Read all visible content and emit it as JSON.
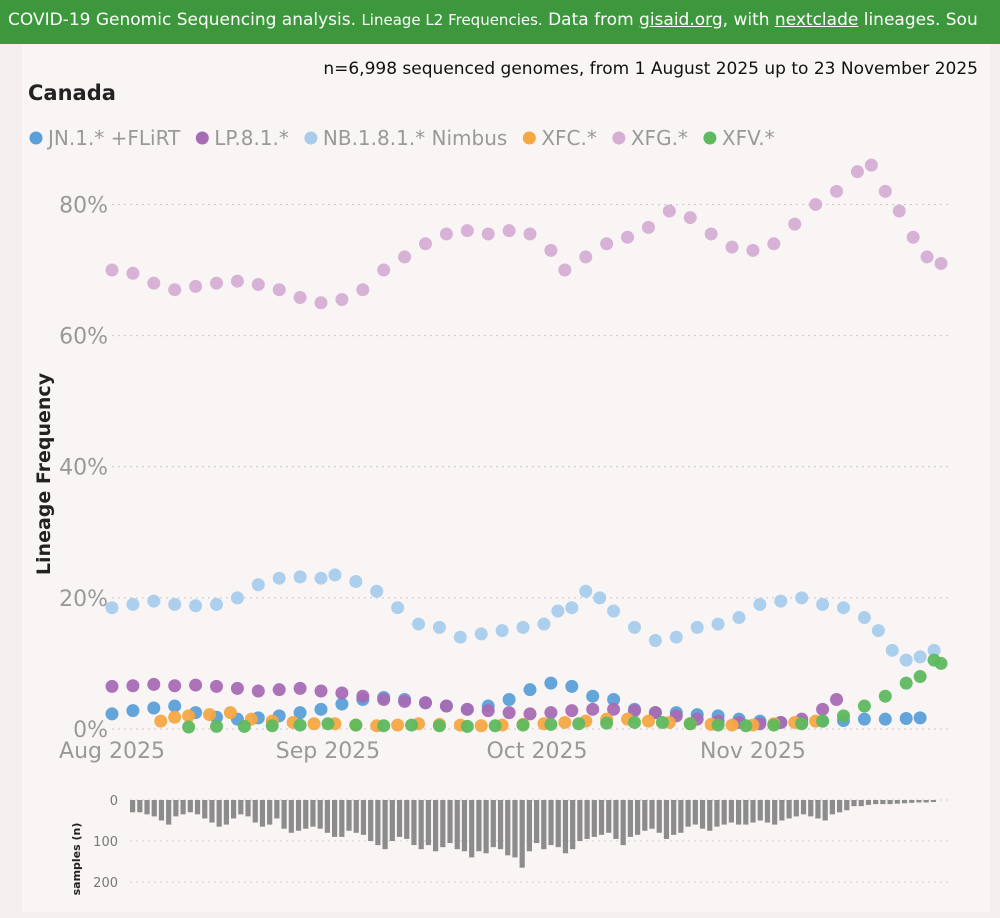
{
  "banner": {
    "main": "COVID-19 Genomic Sequencing analysis.",
    "sub": "Lineage L2 Frequencies.",
    "data_from": "Data from",
    "gisaid": "gisaid.org",
    "with": ", with",
    "nextclade": "nextclade",
    "lineages": "lineages.",
    "source": "Sou"
  },
  "chart_data": {
    "type": "scatter",
    "subtitle": "n=6,998 sequenced genomes, from 1 August 2025 up to 23 November 2025",
    "title": "Canada",
    "ylabel": "Lineage Frequency",
    "ylim": [
      0,
      0.88
    ],
    "yticks": [
      {
        "value": 0,
        "label": "0%"
      },
      {
        "value": 0.2,
        "label": "20%"
      },
      {
        "value": 0.4,
        "label": "40%"
      },
      {
        "value": 0.6,
        "label": "60%"
      },
      {
        "value": 0.8,
        "label": "80%"
      }
    ],
    "xlim": [
      "2025-08-01",
      "2025-11-29"
    ],
    "xticks": [
      {
        "date": "2025-08-01",
        "label": "Aug 2025"
      },
      {
        "date": "2025-09-01",
        "label": "Sep 2025"
      },
      {
        "date": "2025-10-01",
        "label": "Oct 2025"
      },
      {
        "date": "2025-11-01",
        "label": "Nov 2025"
      }
    ],
    "grid": true,
    "legend_position": "top-left",
    "series": [
      {
        "name": "JN.1.* +FLiRT",
        "color": "#5b9fd9",
        "points": [
          [
            "2025-08-01",
            0.023
          ],
          [
            "2025-08-04",
            0.028
          ],
          [
            "2025-08-07",
            0.032
          ],
          [
            "2025-08-10",
            0.035
          ],
          [
            "2025-08-13",
            0.025
          ],
          [
            "2025-08-16",
            0.018
          ],
          [
            "2025-08-19",
            0.015
          ],
          [
            "2025-08-22",
            0.017
          ],
          [
            "2025-08-25",
            0.02
          ],
          [
            "2025-08-28",
            0.025
          ],
          [
            "2025-08-31",
            0.03
          ],
          [
            "2025-09-03",
            0.038
          ],
          [
            "2025-09-06",
            0.045
          ],
          [
            "2025-09-09",
            0.048
          ],
          [
            "2025-09-12",
            0.045
          ],
          [
            "2025-09-15",
            0.04
          ],
          [
            "2025-09-18",
            0.035
          ],
          [
            "2025-09-21",
            0.03
          ],
          [
            "2025-09-24",
            0.035
          ],
          [
            "2025-09-27",
            0.045
          ],
          [
            "2025-09-30",
            0.06
          ],
          [
            "2025-10-03",
            0.07
          ],
          [
            "2025-10-06",
            0.065
          ],
          [
            "2025-10-09",
            0.05
          ],
          [
            "2025-10-12",
            0.045
          ],
          [
            "2025-10-15",
            0.03
          ],
          [
            "2025-10-18",
            0.025
          ],
          [
            "2025-10-21",
            0.025
          ],
          [
            "2025-10-24",
            0.022
          ],
          [
            "2025-10-27",
            0.02
          ],
          [
            "2025-10-30",
            0.015
          ],
          [
            "2025-11-02",
            0.012
          ],
          [
            "2025-11-05",
            0.01
          ],
          [
            "2025-11-08",
            0.01
          ],
          [
            "2025-11-11",
            0.012
          ],
          [
            "2025-11-14",
            0.013
          ],
          [
            "2025-11-17",
            0.015
          ],
          [
            "2025-11-20",
            0.015
          ],
          [
            "2025-11-23",
            0.016
          ],
          [
            "2025-11-25",
            0.017
          ]
        ]
      },
      {
        "name": "LP.8.1.*",
        "color": "#a86cb5",
        "points": [
          [
            "2025-08-01",
            0.065
          ],
          [
            "2025-08-04",
            0.066
          ],
          [
            "2025-08-07",
            0.068
          ],
          [
            "2025-08-10",
            0.066
          ],
          [
            "2025-08-13",
            0.067
          ],
          [
            "2025-08-16",
            0.065
          ],
          [
            "2025-08-19",
            0.062
          ],
          [
            "2025-08-22",
            0.058
          ],
          [
            "2025-08-25",
            0.06
          ],
          [
            "2025-08-28",
            0.062
          ],
          [
            "2025-08-31",
            0.058
          ],
          [
            "2025-09-03",
            0.055
          ],
          [
            "2025-09-06",
            0.05
          ],
          [
            "2025-09-09",
            0.045
          ],
          [
            "2025-09-12",
            0.042
          ],
          [
            "2025-09-15",
            0.04
          ],
          [
            "2025-09-18",
            0.035
          ],
          [
            "2025-09-21",
            0.03
          ],
          [
            "2025-09-24",
            0.028
          ],
          [
            "2025-09-27",
            0.025
          ],
          [
            "2025-09-30",
            0.023
          ],
          [
            "2025-10-03",
            0.025
          ],
          [
            "2025-10-06",
            0.028
          ],
          [
            "2025-10-09",
            0.03
          ],
          [
            "2025-10-12",
            0.03
          ],
          [
            "2025-10-15",
            0.028
          ],
          [
            "2025-10-18",
            0.025
          ],
          [
            "2025-10-21",
            0.02
          ],
          [
            "2025-10-24",
            0.015
          ],
          [
            "2025-10-27",
            0.012
          ],
          [
            "2025-10-30",
            0.01
          ],
          [
            "2025-11-02",
            0.008
          ],
          [
            "2025-11-05",
            0.01
          ],
          [
            "2025-11-08",
            0.015
          ],
          [
            "2025-11-11",
            0.03
          ],
          [
            "2025-11-13",
            0.045
          ]
        ]
      },
      {
        "name": "NB.1.8.1.* Nimbus",
        "color": "#a8ccec",
        "points": [
          [
            "2025-08-01",
            0.185
          ],
          [
            "2025-08-04",
            0.19
          ],
          [
            "2025-08-07",
            0.195
          ],
          [
            "2025-08-10",
            0.19
          ],
          [
            "2025-08-13",
            0.188
          ],
          [
            "2025-08-16",
            0.19
          ],
          [
            "2025-08-19",
            0.2
          ],
          [
            "2025-08-22",
            0.22
          ],
          [
            "2025-08-25",
            0.23
          ],
          [
            "2025-08-28",
            0.232
          ],
          [
            "2025-08-31",
            0.23
          ],
          [
            "2025-09-02",
            0.235
          ],
          [
            "2025-09-05",
            0.225
          ],
          [
            "2025-09-08",
            0.21
          ],
          [
            "2025-09-11",
            0.185
          ],
          [
            "2025-09-14",
            0.16
          ],
          [
            "2025-09-17",
            0.155
          ],
          [
            "2025-09-20",
            0.14
          ],
          [
            "2025-09-23",
            0.145
          ],
          [
            "2025-09-26",
            0.15
          ],
          [
            "2025-09-29",
            0.155
          ],
          [
            "2025-10-02",
            0.16
          ],
          [
            "2025-10-04",
            0.18
          ],
          [
            "2025-10-06",
            0.185
          ],
          [
            "2025-10-08",
            0.21
          ],
          [
            "2025-10-10",
            0.2
          ],
          [
            "2025-10-12",
            0.18
          ],
          [
            "2025-10-15",
            0.155
          ],
          [
            "2025-10-18",
            0.135
          ],
          [
            "2025-10-21",
            0.14
          ],
          [
            "2025-10-24",
            0.155
          ],
          [
            "2025-10-27",
            0.16
          ],
          [
            "2025-10-30",
            0.17
          ],
          [
            "2025-11-02",
            0.19
          ],
          [
            "2025-11-05",
            0.195
          ],
          [
            "2025-11-08",
            0.2
          ],
          [
            "2025-11-11",
            0.19
          ],
          [
            "2025-11-14",
            0.185
          ],
          [
            "2025-11-17",
            0.17
          ],
          [
            "2025-11-19",
            0.15
          ],
          [
            "2025-11-21",
            0.12
          ],
          [
            "2025-11-23",
            0.105
          ],
          [
            "2025-11-25",
            0.11
          ],
          [
            "2025-11-27",
            0.12
          ]
        ]
      },
      {
        "name": "XFC.*",
        "color": "#f5a742",
        "points": [
          [
            "2025-08-08",
            0.012
          ],
          [
            "2025-08-10",
            0.018
          ],
          [
            "2025-08-12",
            0.02
          ],
          [
            "2025-08-15",
            0.022
          ],
          [
            "2025-08-18",
            0.025
          ],
          [
            "2025-08-21",
            0.015
          ],
          [
            "2025-08-24",
            0.012
          ],
          [
            "2025-08-27",
            0.01
          ],
          [
            "2025-08-30",
            0.008
          ],
          [
            "2025-09-02",
            0.008
          ],
          [
            "2025-09-05",
            0.006
          ],
          [
            "2025-09-08",
            0.005
          ],
          [
            "2025-09-11",
            0.006
          ],
          [
            "2025-09-14",
            0.008
          ],
          [
            "2025-09-17",
            0.007
          ],
          [
            "2025-09-20",
            0.006
          ],
          [
            "2025-09-23",
            0.005
          ],
          [
            "2025-09-26",
            0.006
          ],
          [
            "2025-09-29",
            0.007
          ],
          [
            "2025-10-02",
            0.008
          ],
          [
            "2025-10-05",
            0.01
          ],
          [
            "2025-10-08",
            0.012
          ],
          [
            "2025-10-11",
            0.015
          ],
          [
            "2025-10-14",
            0.015
          ],
          [
            "2025-10-17",
            0.012
          ],
          [
            "2025-10-20",
            0.01
          ],
          [
            "2025-10-23",
            0.008
          ],
          [
            "2025-10-26",
            0.007
          ],
          [
            "2025-10-29",
            0.006
          ],
          [
            "2025-11-01",
            0.006
          ],
          [
            "2025-11-04",
            0.008
          ],
          [
            "2025-11-07",
            0.01
          ],
          [
            "2025-11-10",
            0.012
          ]
        ]
      },
      {
        "name": "XFG.*",
        "color": "#d6aed4",
        "points": [
          [
            "2025-08-01",
            0.7
          ],
          [
            "2025-08-04",
            0.695
          ],
          [
            "2025-08-07",
            0.68
          ],
          [
            "2025-08-10",
            0.67
          ],
          [
            "2025-08-13",
            0.675
          ],
          [
            "2025-08-16",
            0.68
          ],
          [
            "2025-08-19",
            0.683
          ],
          [
            "2025-08-22",
            0.678
          ],
          [
            "2025-08-25",
            0.67
          ],
          [
            "2025-08-28",
            0.658
          ],
          [
            "2025-08-31",
            0.65
          ],
          [
            "2025-09-03",
            0.655
          ],
          [
            "2025-09-06",
            0.67
          ],
          [
            "2025-09-09",
            0.7
          ],
          [
            "2025-09-12",
            0.72
          ],
          [
            "2025-09-15",
            0.74
          ],
          [
            "2025-09-18",
            0.755
          ],
          [
            "2025-09-21",
            0.76
          ],
          [
            "2025-09-24",
            0.755
          ],
          [
            "2025-09-27",
            0.76
          ],
          [
            "2025-09-30",
            0.755
          ],
          [
            "2025-10-03",
            0.73
          ],
          [
            "2025-10-05",
            0.7
          ],
          [
            "2025-10-08",
            0.72
          ],
          [
            "2025-10-11",
            0.74
          ],
          [
            "2025-10-14",
            0.75
          ],
          [
            "2025-10-17",
            0.765
          ],
          [
            "2025-10-20",
            0.79
          ],
          [
            "2025-10-23",
            0.78
          ],
          [
            "2025-10-26",
            0.755
          ],
          [
            "2025-10-29",
            0.735
          ],
          [
            "2025-11-01",
            0.73
          ],
          [
            "2025-11-04",
            0.74
          ],
          [
            "2025-11-07",
            0.77
          ],
          [
            "2025-11-10",
            0.8
          ],
          [
            "2025-11-13",
            0.82
          ],
          [
            "2025-11-16",
            0.85
          ],
          [
            "2025-11-18",
            0.86
          ],
          [
            "2025-11-20",
            0.82
          ],
          [
            "2025-11-22",
            0.79
          ],
          [
            "2025-11-24",
            0.75
          ],
          [
            "2025-11-26",
            0.72
          ],
          [
            "2025-11-28",
            0.71
          ]
        ]
      },
      {
        "name": "XFV.*",
        "color": "#5fb95f",
        "points": [
          [
            "2025-08-12",
            0.003
          ],
          [
            "2025-08-16",
            0.004
          ],
          [
            "2025-08-20",
            0.004
          ],
          [
            "2025-08-24",
            0.005
          ],
          [
            "2025-08-28",
            0.006
          ],
          [
            "2025-09-01",
            0.008
          ],
          [
            "2025-09-05",
            0.006
          ],
          [
            "2025-09-09",
            0.005
          ],
          [
            "2025-09-13",
            0.006
          ],
          [
            "2025-09-17",
            0.005
          ],
          [
            "2025-09-21",
            0.004
          ],
          [
            "2025-09-25",
            0.005
          ],
          [
            "2025-09-29",
            0.006
          ],
          [
            "2025-10-03",
            0.007
          ],
          [
            "2025-10-07",
            0.008
          ],
          [
            "2025-10-11",
            0.009
          ],
          [
            "2025-10-15",
            0.01
          ],
          [
            "2025-10-19",
            0.01
          ],
          [
            "2025-10-23",
            0.008
          ],
          [
            "2025-10-27",
            0.006
          ],
          [
            "2025-10-31",
            0.005
          ],
          [
            "2025-11-04",
            0.006
          ],
          [
            "2025-11-08",
            0.008
          ],
          [
            "2025-11-11",
            0.012
          ],
          [
            "2025-11-14",
            0.02
          ],
          [
            "2025-11-17",
            0.035
          ],
          [
            "2025-11-20",
            0.05
          ],
          [
            "2025-11-23",
            0.07
          ],
          [
            "2025-11-25",
            0.08
          ],
          [
            "2025-11-27",
            0.105
          ],
          [
            "2025-11-28",
            0.1
          ]
        ]
      }
    ],
    "samples": {
      "label": "samples (n)",
      "ylim": [
        0,
        200
      ],
      "yticks": [
        0,
        100,
        200
      ],
      "values": [
        30,
        30,
        35,
        40,
        50,
        60,
        40,
        35,
        30,
        35,
        45,
        55,
        65,
        60,
        45,
        35,
        40,
        55,
        65,
        60,
        45,
        70,
        80,
        75,
        70,
        65,
        70,
        80,
        90,
        90,
        75,
        80,
        85,
        100,
        110,
        120,
        100,
        90,
        95,
        110,
        120,
        110,
        125,
        115,
        105,
        120,
        125,
        140,
        125,
        130,
        115,
        120,
        135,
        140,
        165,
        125,
        105,
        120,
        110,
        115,
        130,
        120,
        100,
        95,
        90,
        85,
        80,
        95,
        110,
        90,
        85,
        75,
        70,
        80,
        95,
        85,
        80,
        65,
        60,
        70,
        75,
        65,
        60,
        55,
        60,
        60,
        55,
        50,
        55,
        60,
        50,
        45,
        40,
        35,
        40,
        45,
        50,
        35,
        30,
        25,
        15,
        15,
        12,
        10,
        10,
        10,
        9,
        8,
        7,
        6,
        6,
        5
      ]
    }
  }
}
